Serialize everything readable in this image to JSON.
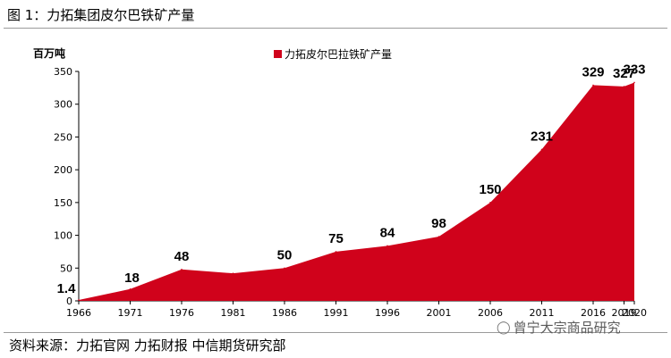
{
  "figure": {
    "title": "图 1：力拓集团皮尔巴铁矿产量",
    "source": "资料来源：力拓官网  力拓财报  中信期货研究部",
    "watermark": "曾宁大宗商品研究"
  },
  "chart_data": {
    "type": "area",
    "title": "图 1：力拓集团皮尔巴铁矿产量",
    "ylabel": "百万吨",
    "xlabel": "",
    "x": [
      "1966",
      "1971",
      "1976",
      "1981",
      "1986",
      "1991",
      "1996",
      "2001",
      "2006",
      "2011",
      "2016",
      "2019",
      "2020"
    ],
    "series": [
      {
        "name": "力拓皮尔巴拉铁矿产量",
        "values": [
          1.4,
          18,
          48,
          42,
          50,
          75,
          84,
          98,
          150,
          231,
          329,
          327,
          333
        ],
        "color": "#d0021b"
      }
    ],
    "data_labels": [
      "1.4",
      "18",
      "48",
      null,
      "50",
      "75",
      "84",
      "98",
      "150",
      "231",
      "329",
      "327",
      "333"
    ],
    "ylim": [
      0,
      350
    ],
    "yticks": [
      0,
      50,
      100,
      150,
      200,
      250,
      300,
      350
    ],
    "grid": false,
    "legend_position": "top-center"
  }
}
